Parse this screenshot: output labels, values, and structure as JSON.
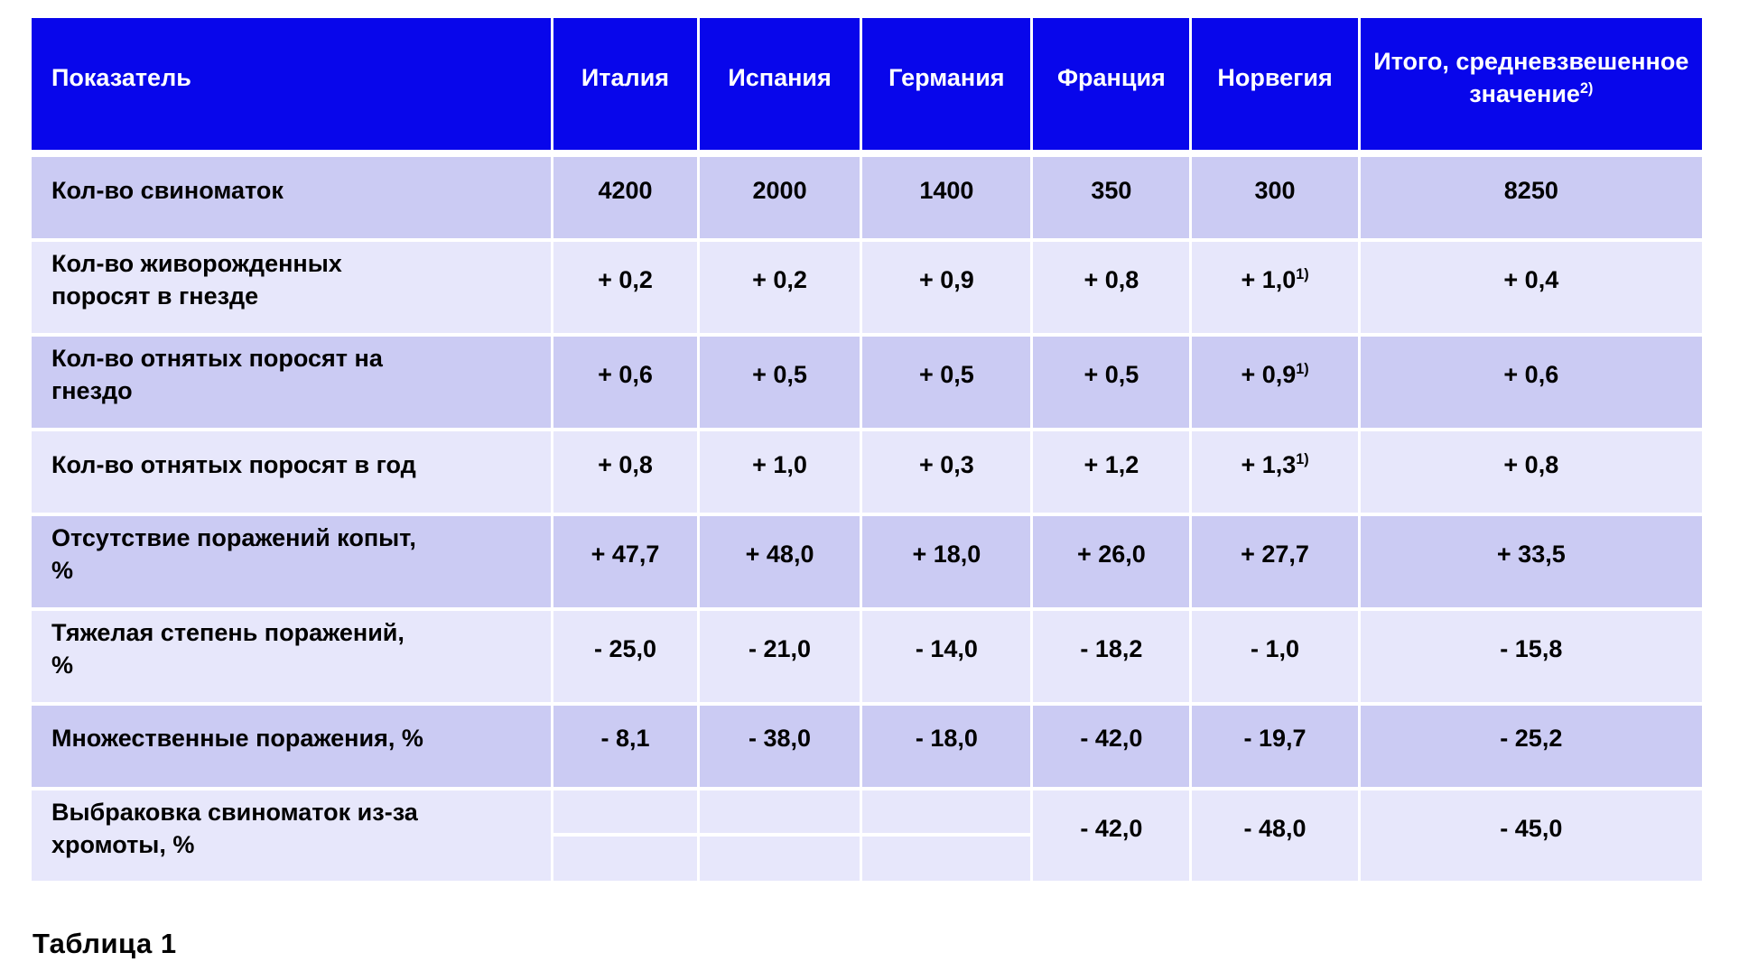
{
  "caption": "Таблица 1",
  "colors": {
    "header_bg": "#0806eb",
    "header_text": "#ffffff",
    "row_dark": "#cbcbf3",
    "row_light": "#e7e7fb",
    "body_text": "#000000",
    "divider": "#ffffff"
  },
  "table": {
    "columns": [
      {
        "key": "indicator",
        "label": "Показатель"
      },
      {
        "key": "italy",
        "label": "Италия"
      },
      {
        "key": "spain",
        "label": "Испания"
      },
      {
        "key": "germany",
        "label": "Германия"
      },
      {
        "key": "france",
        "label": "Франция"
      },
      {
        "key": "norway",
        "label": "Норвегия"
      },
      {
        "key": "total",
        "label": {
          "text": "Итого, средневзвешенное значение",
          "sup": "2)"
        }
      }
    ],
    "rows": [
      {
        "label": "Кол-во свиноматок",
        "shade": "dark",
        "values": [
          "4200",
          "2000",
          "1400",
          "350",
          "300",
          "8250"
        ]
      },
      {
        "label": "Кол-во живорожденных поросят в гнезде",
        "shade": "light",
        "values": [
          "+ 0,2",
          "+ 0,2",
          "+ 0,9",
          "+ 0,8",
          {
            "text": "+ 1,0",
            "sup": "1)"
          },
          "+ 0,4"
        ]
      },
      {
        "label": "Кол-во отнятых поросят на гнездо",
        "shade": "dark",
        "values": [
          "+ 0,6",
          "+ 0,5",
          "+ 0,5",
          "+ 0,5",
          {
            "text": "+ 0,9",
            "sup": "1)"
          },
          "+ 0,6"
        ]
      },
      {
        "label": "Кол-во отнятых поросят в год",
        "shade": "light",
        "values": [
          "+ 0,8",
          "+ 1,0",
          "+ 0,3",
          "+ 1,2",
          {
            "text": "+ 1,3",
            "sup": "1)"
          },
          "+ 0,8"
        ]
      },
      {
        "label": "Отсутствие поражений копыт, %",
        "shade": "dark",
        "values": [
          "+ 47,7",
          "+ 48,0",
          "+ 18,0",
          "+ 26,0",
          "+ 27,7",
          "+ 33,5"
        ]
      },
      {
        "label": "Тяжелая степень поражений, %",
        "shade": "light",
        "values": [
          "- 25,0",
          "- 21,0",
          "- 14,0",
          "- 18,2",
          "- 1,0",
          "- 15,8"
        ]
      },
      {
        "label": "Множественные поражения, %",
        "shade": "dark",
        "values": [
          "- 8,1",
          "- 38,0",
          "- 18,0",
          "- 42,0",
          "- 19,7",
          "- 25,2"
        ]
      },
      {
        "label": "Выбраковка свиноматок из-за хромоты, %",
        "shade": "light",
        "split_empty_cells": true,
        "values": [
          "",
          "",
          "",
          "- 42,0",
          "- 48,0",
          "- 45,0"
        ]
      }
    ]
  },
  "chart_data": {
    "type": "table",
    "title": "Таблица 1",
    "columns": [
      "Показатель",
      "Италия",
      "Испания",
      "Германия",
      "Франция",
      "Норвегия",
      "Итого, средневзвешенное значение²⁾"
    ],
    "rows": [
      [
        "Кол-во свиноматок",
        "4200",
        "2000",
        "1400",
        "350",
        "300",
        "8250"
      ],
      [
        "Кол-во живорожденных поросят в гнезде",
        "+ 0,2",
        "+ 0,2",
        "+ 0,9",
        "+ 0,8",
        "+ 1,0¹⁾",
        "+ 0,4"
      ],
      [
        "Кол-во отнятых поросят на гнездо",
        "+ 0,6",
        "+ 0,5",
        "+ 0,5",
        "+ 0,5",
        "+ 0,9¹⁾",
        "+ 0,6"
      ],
      [
        "Кол-во отнятых поросят в год",
        "+ 0,8",
        "+ 1,0",
        "+ 0,3",
        "+ 1,2",
        "+ 1,3¹⁾",
        "+ 0,8"
      ],
      [
        "Отсутствие поражений копыт, %",
        "+ 47,7",
        "+ 48,0",
        "+ 18,0",
        "+ 26,0",
        "+ 27,7",
        "+ 33,5"
      ],
      [
        "Тяжелая степень поражений, %",
        "- 25,0",
        "- 21,0",
        "- 14,0",
        "- 18,2",
        "- 1,0",
        "- 15,8"
      ],
      [
        "Множественные поражения, %",
        "- 8,1",
        "- 38,0",
        "- 18,0",
        "- 42,0",
        "- 19,7",
        "- 25,2"
      ],
      [
        "Выбраковка свиноматок из-за хромоты, %",
        "",
        "",
        "",
        "- 42,0",
        "- 48,0",
        "- 45,0"
      ]
    ]
  }
}
